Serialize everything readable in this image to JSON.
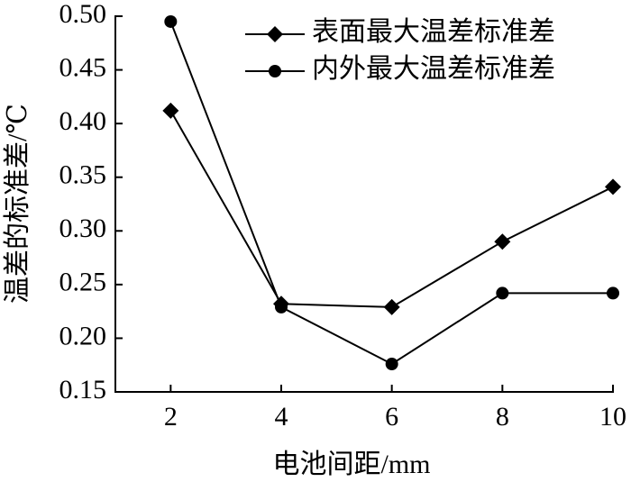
{
  "chart_data": {
    "type": "line",
    "x_label": "电池间距/mm",
    "y_label": "温差的标准差/℃",
    "x": [
      2,
      4,
      6,
      8,
      10
    ],
    "xlim": [
      1,
      10
    ],
    "xticks": [
      2,
      4,
      6,
      8,
      10
    ],
    "ylim": [
      0.15,
      0.5
    ],
    "yticks": [
      0.15,
      {
        "value": 0.2,
        "label": "0.20"
      },
      0.25,
      {
        "value": 0.3,
        "label": "0.30"
      },
      0.35,
      {
        "value": 0.4,
        "label": "0.40"
      },
      0.45,
      {
        "value": 0.5,
        "label": "0.50"
      }
    ],
    "legend": "upper right",
    "series": [
      {
        "name": "表面最大温差标准差",
        "color": "#000000",
        "marker": "diamond",
        "values": [
          0.412,
          0.232,
          0.229,
          0.29,
          0.341
        ]
      },
      {
        "name": "内外最大温差标准差",
        "color": "#000000",
        "marker": "circle",
        "values": [
          0.495,
          0.229,
          0.176,
          0.242,
          0.242
        ]
      }
    ]
  }
}
